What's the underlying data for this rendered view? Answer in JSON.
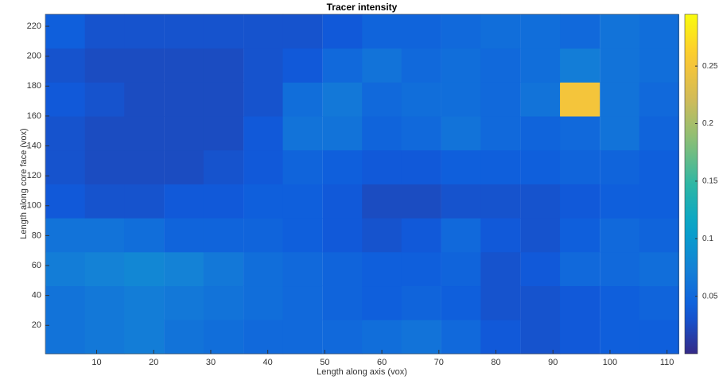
{
  "chart_data": {
    "type": "heatmap",
    "title": "Tracer intensity",
    "x_label": "Length along axis (vox)",
    "y_label": "Length along core face (vox)",
    "x": [
      4.5,
      11.4,
      18.3,
      25.3,
      32.2,
      39.2,
      46.1,
      53.1,
      60,
      66.9,
      73.9,
      80.8,
      87.8,
      94.7,
      101.7,
      108.6
    ],
    "y": [
      12.4,
      35.1,
      57.8,
      80.5,
      103.2,
      125.9,
      148.6,
      171.3,
      194,
      216.7
    ],
    "values": [
      [
        0.06,
        0.065,
        0.07,
        0.06,
        0.055,
        0.05,
        0.05,
        0.05,
        0.055,
        0.06,
        0.05,
        0.035,
        0.03,
        0.035,
        0.04,
        0.04
      ],
      [
        0.06,
        0.065,
        0.07,
        0.065,
        0.06,
        0.055,
        0.05,
        0.045,
        0.04,
        0.045,
        0.04,
        0.03,
        0.03,
        0.035,
        0.04,
        0.045
      ],
      [
        0.07,
        0.075,
        0.08,
        0.075,
        0.065,
        0.055,
        0.05,
        0.045,
        0.04,
        0.04,
        0.045,
        0.03,
        0.035,
        0.05,
        0.05,
        0.055
      ],
      [
        0.06,
        0.06,
        0.055,
        0.045,
        0.045,
        0.045,
        0.04,
        0.035,
        0.03,
        0.035,
        0.05,
        0.035,
        0.03,
        0.04,
        0.05,
        0.045
      ],
      [
        0.035,
        0.03,
        0.03,
        0.035,
        0.035,
        0.04,
        0.04,
        0.035,
        0.025,
        0.025,
        0.03,
        0.03,
        0.03,
        0.035,
        0.04,
        0.04
      ],
      [
        0.03,
        0.025,
        0.025,
        0.025,
        0.03,
        0.035,
        0.045,
        0.04,
        0.035,
        0.035,
        0.04,
        0.04,
        0.04,
        0.045,
        0.045,
        0.04
      ],
      [
        0.03,
        0.025,
        0.025,
        0.025,
        0.025,
        0.035,
        0.06,
        0.06,
        0.045,
        0.05,
        0.06,
        0.05,
        0.045,
        0.05,
        0.06,
        0.045
      ],
      [
        0.035,
        0.03,
        0.025,
        0.025,
        0.025,
        0.03,
        0.055,
        0.065,
        0.05,
        0.055,
        0.055,
        0.05,
        0.06,
        0.25,
        0.06,
        0.05
      ],
      [
        0.03,
        0.025,
        0.025,
        0.025,
        0.025,
        0.03,
        0.035,
        0.05,
        0.06,
        0.05,
        0.055,
        0.05,
        0.055,
        0.07,
        0.06,
        0.055
      ],
      [
        0.04,
        0.03,
        0.03,
        0.03,
        0.03,
        0.03,
        0.03,
        0.035,
        0.045,
        0.045,
        0.05,
        0.055,
        0.055,
        0.05,
        0.06,
        0.055
      ]
    ],
    "xlim": [
      1,
      112
    ],
    "ylim": [
      1,
      228
    ],
    "xticks": [
      10,
      20,
      30,
      40,
      50,
      60,
      70,
      80,
      90,
      100,
      110
    ],
    "yticks": [
      20,
      40,
      60,
      80,
      100,
      120,
      140,
      160,
      180,
      200,
      220
    ],
    "clim": [
      0,
      0.295
    ],
    "cticks": [
      0.05,
      0.1,
      0.15,
      0.2,
      0.25
    ],
    "colormap": "parula"
  }
}
